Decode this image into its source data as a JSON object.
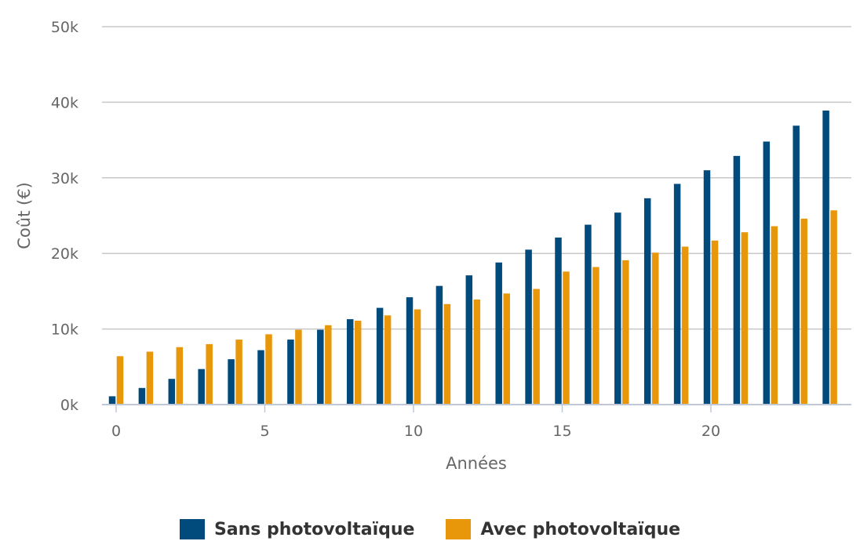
{
  "chart_data": {
    "type": "bar",
    "title": "",
    "xlabel": "Années",
    "ylabel": "Coût (€)",
    "x": [
      0,
      1,
      2,
      3,
      4,
      5,
      6,
      7,
      8,
      9,
      10,
      11,
      12,
      13,
      14,
      15,
      16,
      17,
      18,
      19,
      20,
      21,
      22,
      23,
      24
    ],
    "xticks": [
      "0",
      "5",
      "10",
      "15",
      "20"
    ],
    "xtick_values": [
      0,
      5,
      10,
      15,
      20
    ],
    "yticks": [
      "0k",
      "10k",
      "20k",
      "30k",
      "40k",
      "50k"
    ],
    "ytick_values": [
      0,
      10000,
      20000,
      30000,
      40000,
      50000
    ],
    "ylim": [
      0,
      50000
    ],
    "grid": true,
    "legend_position": "bottom-center",
    "series": [
      {
        "name": "Sans photovoltaïque",
        "color": "#004a7c",
        "values": [
          1100,
          2200,
          3400,
          4700,
          6000,
          7200,
          8600,
          9900,
          11300,
          12800,
          14200,
          15700,
          17100,
          18800,
          20500,
          22100,
          23800,
          25400,
          27300,
          29200,
          31000,
          32900,
          34800,
          36900,
          38900
        ]
      },
      {
        "name": "Avec photovoltaïque",
        "color": "#e8960a",
        "values": [
          6400,
          7000,
          7600,
          8000,
          8600,
          9300,
          9900,
          10500,
          11100,
          11800,
          12600,
          13300,
          13900,
          14700,
          15300,
          17600,
          18200,
          19100,
          20100,
          20900,
          21700,
          22800,
          23600,
          24600,
          25700
        ]
      }
    ]
  },
  "legend": {
    "items": [
      {
        "label": "Sans photovoltaïque",
        "color": "#004a7c"
      },
      {
        "label": "Avec photovoltaïque",
        "color": "#e8960a"
      }
    ]
  },
  "colors": {
    "grid": "#c8c8c8",
    "axis": "#c0c8d8",
    "text": "#666666"
  }
}
